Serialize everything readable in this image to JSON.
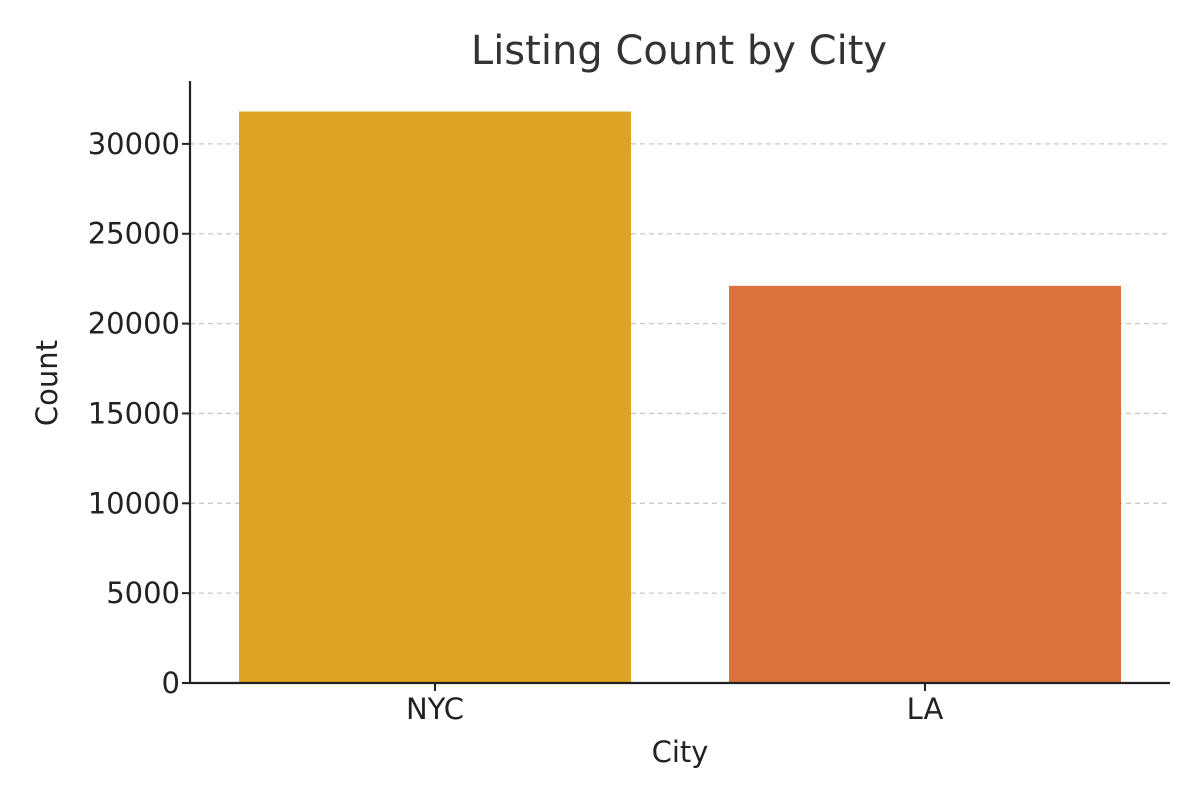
{
  "chart_data": {
    "type": "bar",
    "title": "Listing Count by City",
    "xlabel": "City",
    "ylabel": "Count",
    "categories": [
      "NYC",
      "LA"
    ],
    "values": [
      31800,
      22100
    ],
    "colors": [
      "#dea321",
      "#db723b"
    ],
    "ylim": [
      0,
      33500
    ],
    "yticks": [
      0,
      5000,
      10000,
      15000,
      20000,
      25000,
      30000
    ],
    "ytick_labels": [
      "0",
      "5000",
      "10000",
      "15000",
      "20000",
      "25000",
      "30000"
    ],
    "grid": "horizontal dashed",
    "legend": "none"
  }
}
